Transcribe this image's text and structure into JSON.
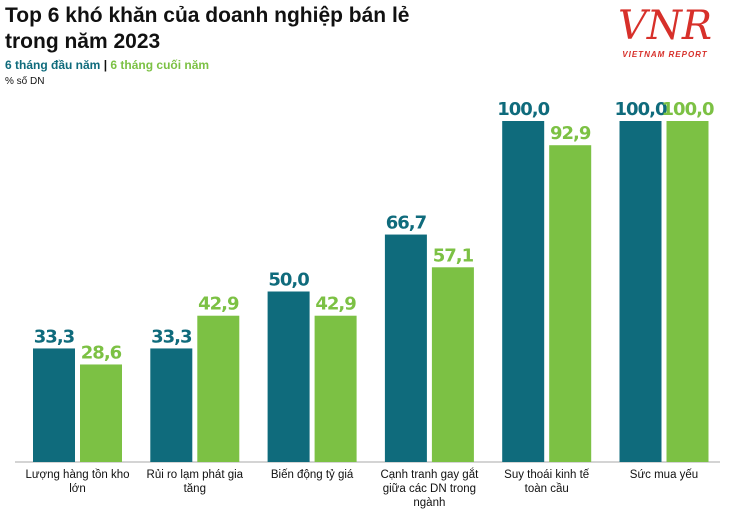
{
  "chart_data": {
    "type": "bar",
    "title": "Top 6 khó khăn của doanh nghiệp bán lẻ trong năm 2023",
    "subtitle": "% số DN",
    "logo": {
      "mark": "VNR",
      "name": "VIETNAM REPORT"
    },
    "categories": [
      "Lượng hàng tồn kho lớn",
      "Rủi ro lạm phát gia tăng",
      "Biến động tỷ giá",
      "Cạnh tranh gay gắt giữa các DN trong ngành",
      "Suy thoái kinh tế toàn cầu",
      "Sức mua yếu"
    ],
    "series": [
      {
        "name": "6 tháng đầu năm",
        "color": "#0f6b7c",
        "values": [
          33.3,
          33.3,
          50.0,
          66.7,
          100.0,
          100.0
        ],
        "value_labels": [
          "33,3",
          "33,3",
          "50,0",
          "66,7",
          "100,0",
          "100,0"
        ]
      },
      {
        "name": "6 tháng cuối năm",
        "color": "#7cc144",
        "values": [
          28.6,
          42.9,
          42.9,
          57.1,
          92.9,
          100.0
        ],
        "value_labels": [
          "28,6",
          "42,9",
          "42,9",
          "57,1",
          "92,9",
          "100,0"
        ]
      }
    ],
    "ylim": [
      0,
      100
    ],
    "grid": false
  }
}
